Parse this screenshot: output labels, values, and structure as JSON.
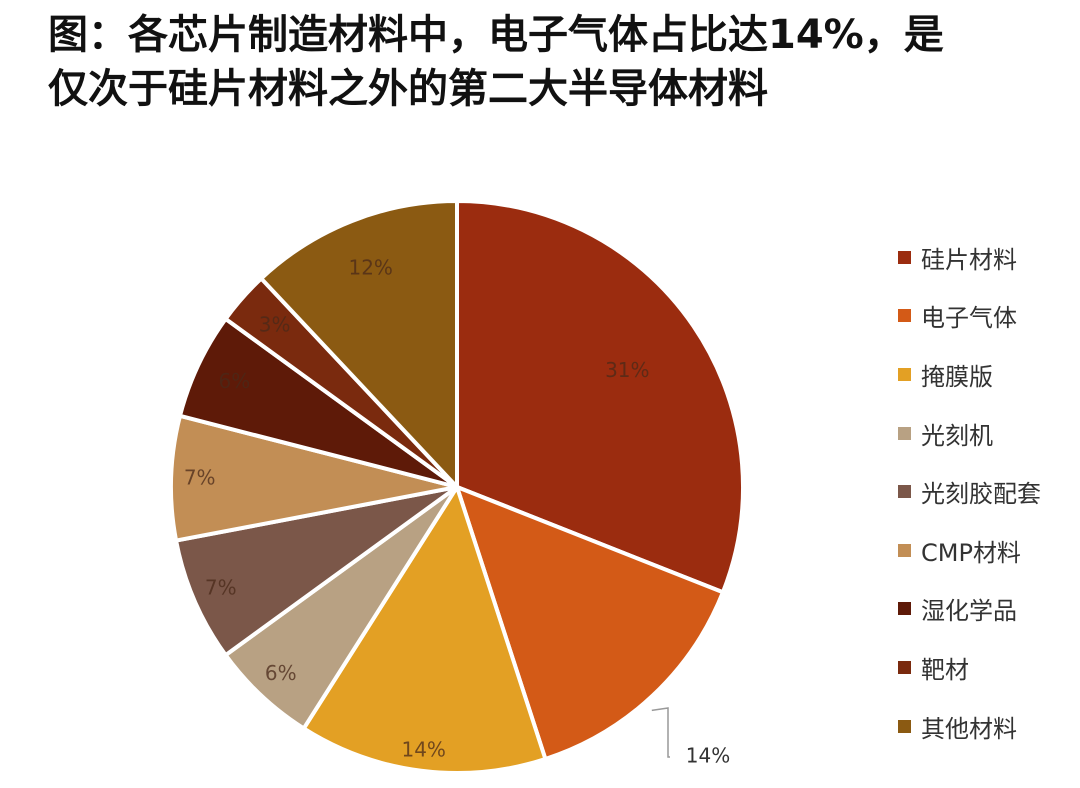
{
  "title_lines": [
    "图：各芯片制造材料中，电子气体占比达14%，是",
    "仅次于硅片材料之外的第二大半导体材料"
  ],
  "chart_data": {
    "type": "pie",
    "start_angle_deg": 0,
    "direction": "clockwise",
    "legend_position": "right",
    "slices": [
      {
        "label": "硅片材料",
        "value": 31,
        "data_label": "31%",
        "color": "#9B2C0F"
      },
      {
        "label": "电子气体",
        "value": 14,
        "data_label": "14%",
        "color": "#D35A17"
      },
      {
        "label": "掩膜版",
        "value": 14,
        "data_label": "14%",
        "color": "#E3A024"
      },
      {
        "label": "光刻机",
        "value": 6,
        "data_label": "6%",
        "color": "#B8A183"
      },
      {
        "label": "光刻胶配套",
        "value": 7,
        "data_label": "7%",
        "color": "#7B5749"
      },
      {
        "label": "CMP材料",
        "value": 7,
        "data_label": "7%",
        "color": "#C28E55"
      },
      {
        "label": "湿化学品",
        "value": 6,
        "data_label": "6%",
        "color": "#5E1A08"
      },
      {
        "label": "靶材",
        "value": 3,
        "data_label": "3%",
        "color": "#7A2A0E"
      },
      {
        "label": "其他材料",
        "value": 12,
        "data_label": "12%",
        "color": "#8B5A12"
      }
    ]
  }
}
